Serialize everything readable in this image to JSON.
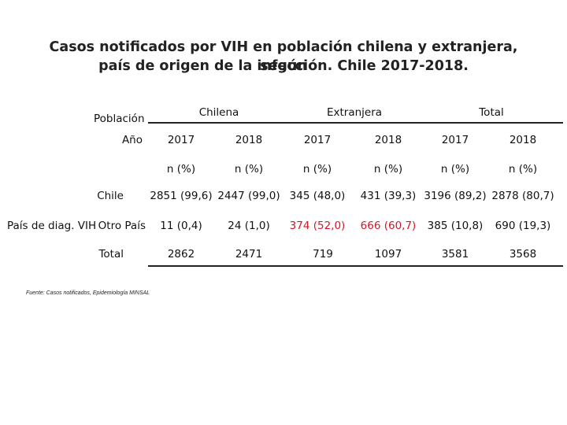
{
  "title": {
    "line1": "Casos notificados por VIH en población chilena y extranjera, según",
    "line2": "país de origen de la infección. Chile 2017-2018."
  },
  "table": {
    "row_header_poblacion": "Población",
    "row_header_ano": "Año",
    "groups": [
      "Chilena",
      "Extranjera",
      "Total"
    ],
    "years": [
      "2017",
      "2018",
      "2017",
      "2018",
      "2017",
      "2018"
    ],
    "units": [
      "n (%)",
      "n (%)",
      "n (%)",
      "n (%)",
      "n (%)",
      "n (%)"
    ],
    "dimension_label": "País de diag. VIH",
    "rows": [
      {
        "label": "Chile",
        "values": [
          "2851 (99,6)",
          "2447 (99,0)",
          "345 (48,0)",
          "431 (39,3)",
          "3196 (89,2)",
          "2878 (80,7)"
        ]
      },
      {
        "label": "Otro País",
        "values": [
          "11 (0,4)",
          "24 (1,0)",
          "374 (52,0)",
          "666 (60,7)",
          "385 (10,8)",
          "690 (19,3)"
        ]
      },
      {
        "label": "Total",
        "values": [
          "2862",
          "2471",
          "719",
          "1097",
          "3581",
          "3568"
        ]
      }
    ],
    "highlight_color": "#d0182a"
  },
  "source": "Fuente: Casos notificados, Epidemiología MINSAL"
}
